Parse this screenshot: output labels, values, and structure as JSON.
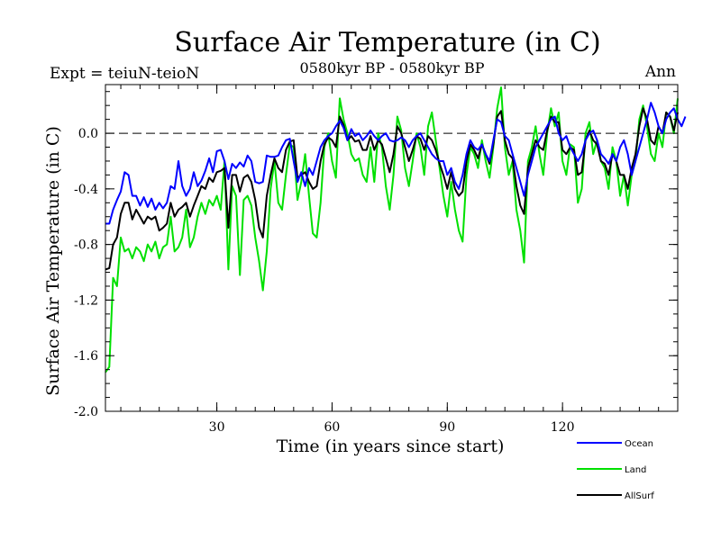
{
  "chart_data": {
    "type": "line",
    "title": "Surface Air Temperature (in C)",
    "subtitle": "0580kyr BP - 0580kyr BP",
    "left_label": "Expt = teiuN-teioN",
    "right_label": "Ann",
    "xlabel": "Time (in years since start)",
    "ylabel": "Surface Air Temperature (in C)",
    "xlim": [
      1,
      150
    ],
    "ylim": [
      -2.0,
      0.35
    ],
    "xticks": [
      30,
      60,
      90,
      120
    ],
    "yticks": [
      -2.0,
      -1.6,
      -1.2,
      -0.8,
      -0.4,
      0.0
    ],
    "ytick_labels": [
      "-2.0",
      "-1.6",
      "-1.2",
      "-0.8",
      "-0.4",
      "0.0"
    ],
    "zero_line": "dashed",
    "legend_position": "bottom-right",
    "series": [
      {
        "name": "Ocean",
        "color": "#0000ff",
        "values": [
          -0.65,
          -0.65,
          -0.55,
          -0.48,
          -0.42,
          -0.28,
          -0.3,
          -0.45,
          -0.45,
          -0.52,
          -0.46,
          -0.53,
          -0.47,
          -0.55,
          -0.5,
          -0.54,
          -0.5,
          -0.38,
          -0.4,
          -0.2,
          -0.38,
          -0.45,
          -0.4,
          -0.28,
          -0.38,
          -0.34,
          -0.27,
          -0.18,
          -0.28,
          -0.13,
          -0.12,
          -0.2,
          -0.33,
          -0.22,
          -0.25,
          -0.21,
          -0.24,
          -0.16,
          -0.2,
          -0.35,
          -0.36,
          -0.35,
          -0.16,
          -0.17,
          -0.17,
          -0.16,
          -0.1,
          -0.05,
          -0.04,
          -0.2,
          -0.35,
          -0.28,
          -0.38,
          -0.25,
          -0.3,
          -0.2,
          -0.1,
          -0.05,
          -0.02,
          0.0,
          0.05,
          0.09,
          0.04,
          -0.05,
          0.03,
          -0.02,
          0.0,
          -0.05,
          -0.02,
          0.02,
          -0.02,
          -0.05,
          -0.02,
          0.0,
          -0.05,
          -0.06,
          -0.05,
          -0.03,
          -0.05,
          -0.1,
          -0.05,
          -0.02,
          0.0,
          -0.05,
          -0.1,
          -0.15,
          -0.18,
          -0.2,
          -0.2,
          -0.3,
          -0.25,
          -0.35,
          -0.4,
          -0.3,
          -0.15,
          -0.05,
          -0.1,
          -0.12,
          -0.08,
          -0.15,
          -0.2,
          -0.05,
          0.1,
          0.08,
          -0.02,
          -0.05,
          -0.15,
          -0.25,
          -0.35,
          -0.45,
          -0.3,
          -0.2,
          -0.1,
          -0.05,
          0.0,
          0.05,
          0.1,
          0.12,
          0.0,
          -0.05,
          -0.02,
          -0.1,
          -0.15,
          -0.2,
          -0.15,
          -0.05,
          0.0,
          0.02,
          -0.05,
          -0.15,
          -0.18,
          -0.22,
          -0.15,
          -0.2,
          -0.1,
          -0.05,
          -0.15,
          -0.3,
          -0.2,
          -0.1,
          0.0,
          0.1,
          0.22,
          0.15,
          0.05,
          0.0,
          0.1,
          0.15,
          0.18,
          0.1,
          0.05,
          0.12
        ]
      },
      {
        "name": "Land",
        "color": "#00e000",
        "values": [
          -1.72,
          -1.68,
          -1.04,
          -1.1,
          -0.75,
          -0.85,
          -0.83,
          -0.9,
          -0.82,
          -0.85,
          -0.92,
          -0.8,
          -0.85,
          -0.78,
          -0.9,
          -0.82,
          -0.8,
          -0.6,
          -0.85,
          -0.82,
          -0.75,
          -0.55,
          -0.82,
          -0.75,
          -0.6,
          -0.5,
          -0.58,
          -0.48,
          -0.52,
          -0.45,
          -0.55,
          -0.2,
          -0.98,
          -0.38,
          -0.45,
          -1.02,
          -0.48,
          -0.45,
          -0.52,
          -0.75,
          -0.92,
          -1.13,
          -0.85,
          -0.4,
          -0.2,
          -0.5,
          -0.55,
          -0.3,
          -0.08,
          -0.1,
          -0.48,
          -0.35,
          -0.15,
          -0.45,
          -0.72,
          -0.75,
          -0.5,
          -0.1,
          0.0,
          -0.2,
          -0.32,
          0.25,
          0.1,
          0.0,
          -0.15,
          -0.2,
          -0.18,
          -0.3,
          -0.35,
          -0.1,
          -0.35,
          0.0,
          -0.1,
          -0.38,
          -0.55,
          -0.3,
          0.12,
          0.02,
          -0.25,
          -0.38,
          -0.2,
          0.0,
          -0.1,
          -0.3,
          0.05,
          0.15,
          -0.05,
          -0.25,
          -0.45,
          -0.6,
          -0.35,
          -0.55,
          -0.7,
          -0.78,
          -0.3,
          -0.1,
          -0.15,
          -0.25,
          -0.05,
          -0.2,
          -0.32,
          -0.1,
          0.18,
          0.33,
          -0.1,
          -0.3,
          -0.2,
          -0.55,
          -0.7,
          -0.93,
          -0.2,
          -0.1,
          0.05,
          -0.15,
          -0.3,
          0.0,
          0.18,
          0.05,
          0.15,
          -0.2,
          -0.3,
          -0.08,
          -0.1,
          -0.5,
          -0.4,
          0.0,
          0.08,
          -0.15,
          -0.05,
          -0.2,
          -0.25,
          -0.4,
          -0.1,
          -0.2,
          -0.45,
          -0.3,
          -0.52,
          -0.3,
          -0.2,
          0.1,
          0.2,
          0.05,
          -0.15,
          -0.2,
          0.0,
          -0.1,
          0.15,
          0.12,
          0.0,
          0.25
        ]
      },
      {
        "name": "AllSurf",
        "color": "#000000",
        "values": [
          -0.98,
          -0.97,
          -0.8,
          -0.75,
          -0.58,
          -0.5,
          -0.5,
          -0.62,
          -0.55,
          -0.6,
          -0.65,
          -0.6,
          -0.62,
          -0.6,
          -0.7,
          -0.68,
          -0.65,
          -0.5,
          -0.6,
          -0.55,
          -0.53,
          -0.5,
          -0.6,
          -0.52,
          -0.45,
          -0.38,
          -0.4,
          -0.32,
          -0.35,
          -0.28,
          -0.27,
          -0.25,
          -0.68,
          -0.3,
          -0.3,
          -0.42,
          -0.32,
          -0.3,
          -0.35,
          -0.48,
          -0.68,
          -0.75,
          -0.45,
          -0.3,
          -0.18,
          -0.25,
          -0.28,
          -0.12,
          -0.06,
          -0.05,
          -0.32,
          -0.3,
          -0.28,
          -0.35,
          -0.4,
          -0.38,
          -0.2,
          -0.08,
          -0.03,
          -0.05,
          -0.1,
          0.12,
          0.06,
          -0.05,
          -0.02,
          -0.06,
          -0.05,
          -0.12,
          -0.12,
          -0.02,
          -0.12,
          -0.05,
          -0.08,
          -0.18,
          -0.28,
          -0.15,
          0.05,
          0.0,
          -0.1,
          -0.2,
          -0.12,
          -0.02,
          -0.04,
          -0.12,
          -0.02,
          -0.05,
          -0.12,
          -0.22,
          -0.3,
          -0.4,
          -0.28,
          -0.4,
          -0.45,
          -0.42,
          -0.2,
          -0.08,
          -0.12,
          -0.18,
          -0.08,
          -0.15,
          -0.22,
          -0.08,
          0.12,
          0.16,
          -0.05,
          -0.15,
          -0.18,
          -0.38,
          -0.52,
          -0.58,
          -0.25,
          -0.15,
          -0.05,
          -0.1,
          -0.12,
          0.02,
          0.12,
          0.08,
          0.08,
          -0.12,
          -0.15,
          -0.1,
          -0.12,
          -0.3,
          -0.28,
          -0.05,
          0.02,
          -0.05,
          -0.08,
          -0.2,
          -0.22,
          -0.3,
          -0.15,
          -0.2,
          -0.3,
          -0.3,
          -0.4,
          -0.25,
          -0.15,
          0.05,
          0.18,
          0.1,
          -0.05,
          -0.08,
          0.05,
          0.0,
          0.15,
          0.12,
          0.02,
          0.15
        ]
      }
    ]
  }
}
